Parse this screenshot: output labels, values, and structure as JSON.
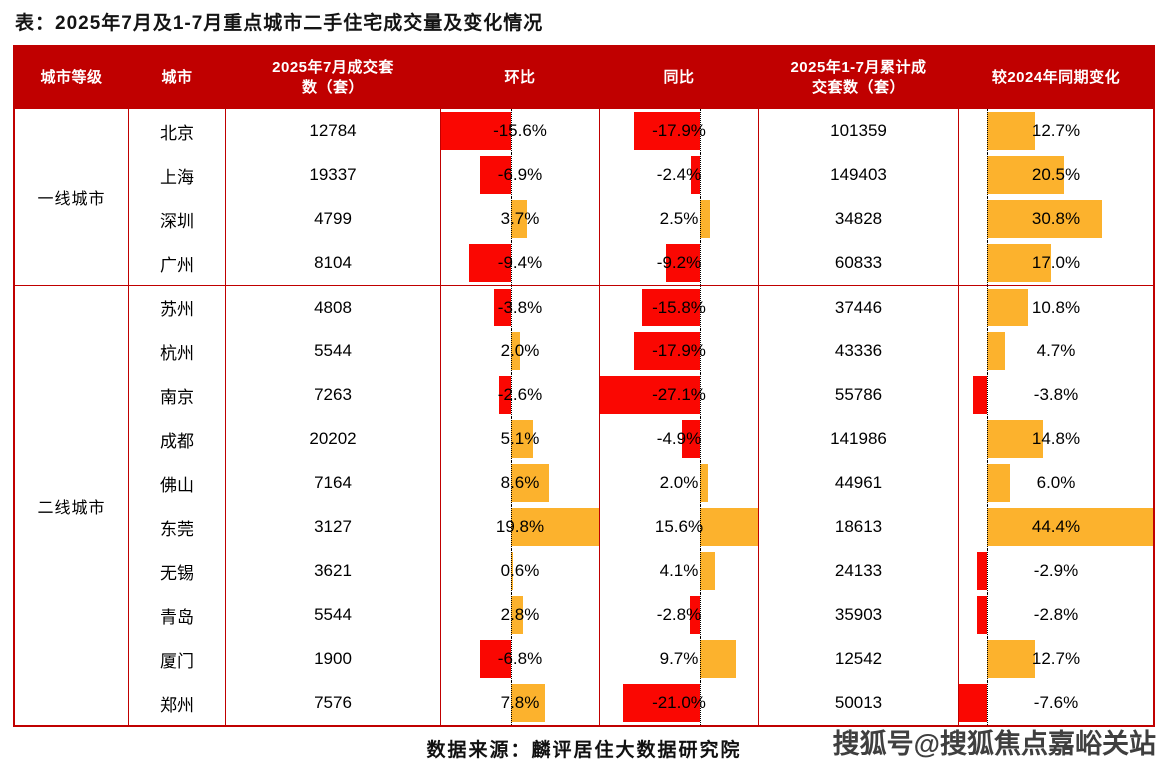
{
  "page": {
    "title": "表：2025年7月及1-7月重点城市二手住宅成交量及变化情况"
  },
  "footer": {
    "source": "数据来源：麟评居住大数据研究院",
    "watermark": "搜狐号@搜狐焦点嘉峪关站"
  },
  "colors": {
    "header_bg": "#C00000",
    "table_border": "#C00000",
    "negative_bar": "#FA0702",
    "positive_bar": "#FCB22D",
    "axis_line": "#000000"
  },
  "chart_data": {
    "type": "table",
    "title": "2025年7月及1-7月重点城市二手住宅成交量及变化情况",
    "columns": [
      "城市等级",
      "城市",
      "2025年7月成交套数（套）",
      "环比",
      "同比",
      "2025年1-7月累计成交套数（套）",
      "较2024年同期变化"
    ],
    "header_display": [
      "城市等级",
      "城市",
      "2025年7月成交套\n数（套）",
      "环比",
      "同比",
      "2025年1-7月累计成\n交套数（套）",
      "较2024年同期变化"
    ],
    "bar_axes": {
      "mom_pct": {
        "min": -15.6,
        "max": 19.8
      },
      "yoy_pct": {
        "min": -27.1,
        "max": 15.6
      },
      "cum_change_pct": {
        "min": -7.6,
        "max": 44.4
      }
    },
    "groups": [
      {
        "tier": "一线城市",
        "rows": [
          {
            "city": "北京",
            "jul_units": "12784",
            "mom_pct": -15.6,
            "yoy_pct": -17.9,
            "cum_units": "101359",
            "cum_change_pct": 12.7
          },
          {
            "city": "上海",
            "jul_units": "19337",
            "mom_pct": -6.9,
            "yoy_pct": -2.4,
            "cum_units": "149403",
            "cum_change_pct": 20.5
          },
          {
            "city": "深圳",
            "jul_units": "4799",
            "mom_pct": 3.7,
            "yoy_pct": 2.5,
            "cum_units": "34828",
            "cum_change_pct": 30.8
          },
          {
            "city": "广州",
            "jul_units": "8104",
            "mom_pct": -9.4,
            "yoy_pct": -9.2,
            "cum_units": "60833",
            "cum_change_pct": 17.0
          }
        ]
      },
      {
        "tier": "二线城市",
        "rows": [
          {
            "city": "苏州",
            "jul_units": "4808",
            "mom_pct": -3.8,
            "yoy_pct": -15.8,
            "cum_units": "37446",
            "cum_change_pct": 10.8
          },
          {
            "city": "杭州",
            "jul_units": "5544",
            "mom_pct": 2.0,
            "yoy_pct": -17.9,
            "cum_units": "43336",
            "cum_change_pct": 4.7
          },
          {
            "city": "南京",
            "jul_units": "7263",
            "mom_pct": -2.6,
            "yoy_pct": -27.1,
            "cum_units": "55786",
            "cum_change_pct": -3.8
          },
          {
            "city": "成都",
            "jul_units": "20202",
            "mom_pct": 5.1,
            "yoy_pct": -4.9,
            "cum_units": "141986",
            "cum_change_pct": 14.8
          },
          {
            "city": "佛山",
            "jul_units": "7164",
            "mom_pct": 8.6,
            "yoy_pct": 2.0,
            "cum_units": "44961",
            "cum_change_pct": 6.0
          },
          {
            "city": "东莞",
            "jul_units": "3127",
            "mom_pct": 19.8,
            "yoy_pct": 15.6,
            "cum_units": "18613",
            "cum_change_pct": 44.4
          },
          {
            "city": "无锡",
            "jul_units": "3621",
            "mom_pct": 0.6,
            "yoy_pct": 4.1,
            "cum_units": "24133",
            "cum_change_pct": -2.9
          },
          {
            "city": "青岛",
            "jul_units": "5544",
            "mom_pct": 2.8,
            "yoy_pct": -2.8,
            "cum_units": "35903",
            "cum_change_pct": -2.8
          },
          {
            "city": "厦门",
            "jul_units": "1900",
            "mom_pct": -6.8,
            "yoy_pct": 9.7,
            "cum_units": "12542",
            "cum_change_pct": 12.7
          },
          {
            "city": "郑州",
            "jul_units": "7576",
            "mom_pct": 7.8,
            "yoy_pct": -21.0,
            "cum_units": "50013",
            "cum_change_pct": -7.6
          }
        ]
      }
    ]
  }
}
